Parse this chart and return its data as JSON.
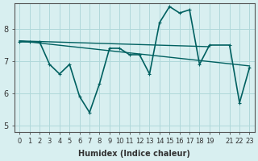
{
  "xlabel": "Humidex (Indice chaleur)",
  "ylabel": "",
  "background_color": "#d8eff0",
  "grid_color": "#b0d8da",
  "line_color": "#006060",
  "xlim": [
    -0.5,
    23.5
  ],
  "ylim": [
    4.8,
    8.8
  ],
  "yticks": [
    5,
    6,
    7,
    8
  ],
  "xtick_labels": [
    "0",
    "1",
    "2",
    "3",
    "4",
    "5",
    "6",
    "7",
    "8",
    "9",
    "10",
    "11",
    "12",
    "13",
    "14",
    "15",
    "16",
    "17",
    "18",
    "19",
    "",
    "21",
    "22",
    "23"
  ],
  "main_x": [
    0,
    1,
    2,
    3,
    4,
    5,
    6,
    7,
    8,
    9,
    10,
    11,
    12,
    13,
    14,
    15,
    16,
    17,
    18,
    19,
    21,
    22,
    23
  ],
  "main_y": [
    7.6,
    7.6,
    7.6,
    6.9,
    6.6,
    6.9,
    5.9,
    5.4,
    6.3,
    7.4,
    7.4,
    7.2,
    7.2,
    6.6,
    8.2,
    8.7,
    8.5,
    8.6,
    6.9,
    7.5,
    7.5,
    5.7,
    6.8
  ],
  "trend1_x": [
    0,
    19
  ],
  "trend1_y": [
    7.63,
    7.45
  ],
  "trend2_x": [
    0,
    23
  ],
  "trend2_y": [
    7.63,
    6.85
  ],
  "marker_size": 3,
  "line_width": 1.2
}
